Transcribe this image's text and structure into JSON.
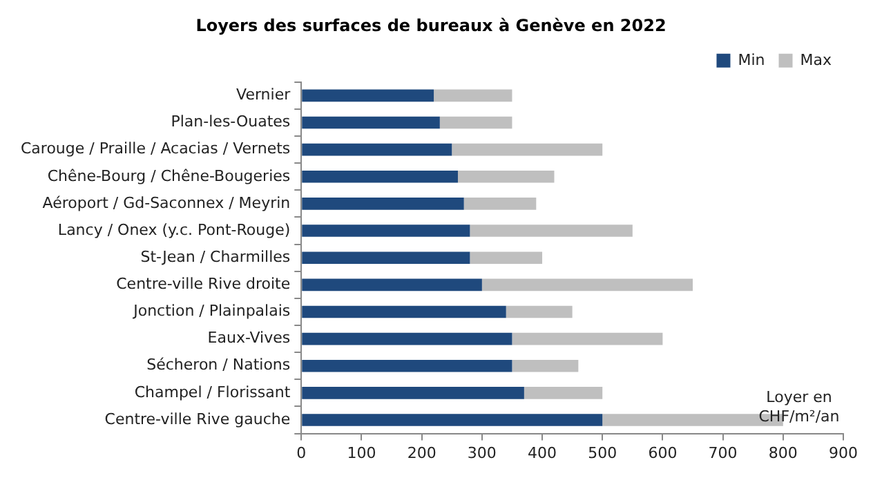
{
  "chart_data": {
    "type": "bar",
    "orientation": "horizontal",
    "stacked": true,
    "title": "Loyers des surfaces de bureaux à Genève en 2022",
    "categories": [
      "Vernier",
      "Plan-les-Ouates",
      "Carouge / Praille / Acacias / Vernets",
      "Chêne-Bourg / Chêne-Bougeries",
      "Aéroport / Gd-Saconnex / Meyrin",
      "Lancy / Onex (y.c. Pont-Rouge)",
      "St-Jean / Charmilles",
      "Centre-ville Rive droite",
      "Jonction / Plainpalais",
      "Eaux-Vives",
      "Sécheron / Nations",
      "Champel / Florissant",
      "Centre-ville Rive gauche"
    ],
    "series": [
      {
        "name": "Min",
        "color": "#1f497d",
        "values": [
          220,
          230,
          250,
          260,
          270,
          280,
          280,
          300,
          340,
          350,
          350,
          370,
          500
        ]
      },
      {
        "name": "Max",
        "color": "#bfbfbf",
        "values": [
          130,
          120,
          250,
          160,
          120,
          270,
          120,
          350,
          110,
          250,
          110,
          130,
          300
        ]
      }
    ],
    "xlim": [
      0,
      900
    ],
    "xticks": [
      0,
      100,
      200,
      300,
      400,
      500,
      600,
      700,
      800,
      900
    ],
    "grid": false,
    "legend": "top right",
    "annotations": [
      "Loyer en CHF/m²/an"
    ]
  }
}
